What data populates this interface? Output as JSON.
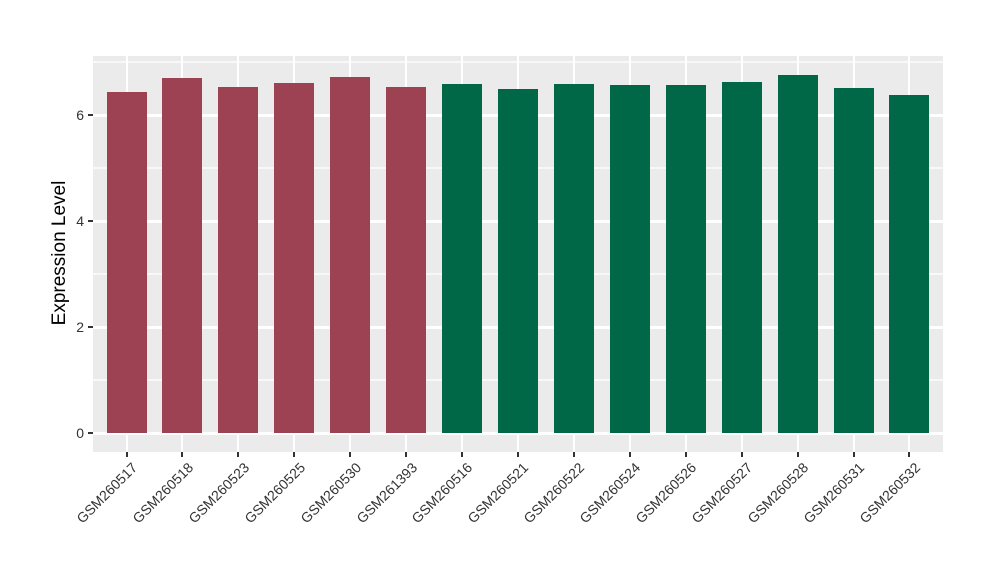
{
  "figure": {
    "background": "#FFFFFF",
    "panel_background": "#EBEBEB",
    "grid_major_color": "#FFFFFF",
    "tick_color": "#333333",
    "axis_text_color": "#333333",
    "axis_title_color": "#000000"
  },
  "chart_data": {
    "type": "bar",
    "title": "",
    "xlabel": "",
    "ylabel": "Expression Level",
    "ylim": [
      -0.36,
      7.11
    ],
    "yticks": [
      0,
      2,
      4,
      6
    ],
    "yminor": [
      1,
      3,
      5,
      7
    ],
    "grid": true,
    "legend": "none",
    "categories": [
      "GSM260517",
      "GSM260518",
      "GSM260523",
      "GSM260525",
      "GSM260530",
      "GSM261393",
      "GSM260516",
      "GSM260521",
      "GSM260522",
      "GSM260524",
      "GSM260526",
      "GSM260527",
      "GSM260528",
      "GSM260531",
      "GSM260532"
    ],
    "values": [
      6.43,
      6.7,
      6.53,
      6.6,
      6.72,
      6.52,
      6.58,
      6.49,
      6.58,
      6.56,
      6.56,
      6.62,
      6.75,
      6.5,
      6.38
    ],
    "groups": [
      "red",
      "red",
      "red",
      "red",
      "red",
      "red",
      "green",
      "green",
      "green",
      "green",
      "green",
      "green",
      "green",
      "green",
      "green"
    ],
    "group_colors": {
      "red": "#9C4252",
      "green": "#006747"
    }
  }
}
